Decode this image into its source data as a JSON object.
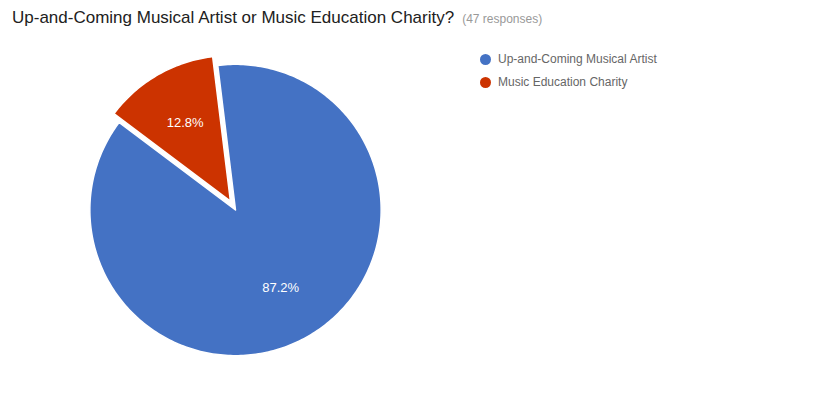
{
  "chart_data": {
    "type": "pie",
    "title": "Up-and-Coming Musical Artist or Music Education Charity?",
    "subtitle": "(47 responses)",
    "categories": [
      "Up-and-Coming Musical Artist",
      "Music Education Charity"
    ],
    "values": [
      87.2,
      12.8
    ],
    "value_labels": [
      "87.2%",
      "12.8%"
    ],
    "colors": [
      "#4472C4",
      "#CC3300"
    ],
    "data_labels": true,
    "legend": "upper right"
  }
}
